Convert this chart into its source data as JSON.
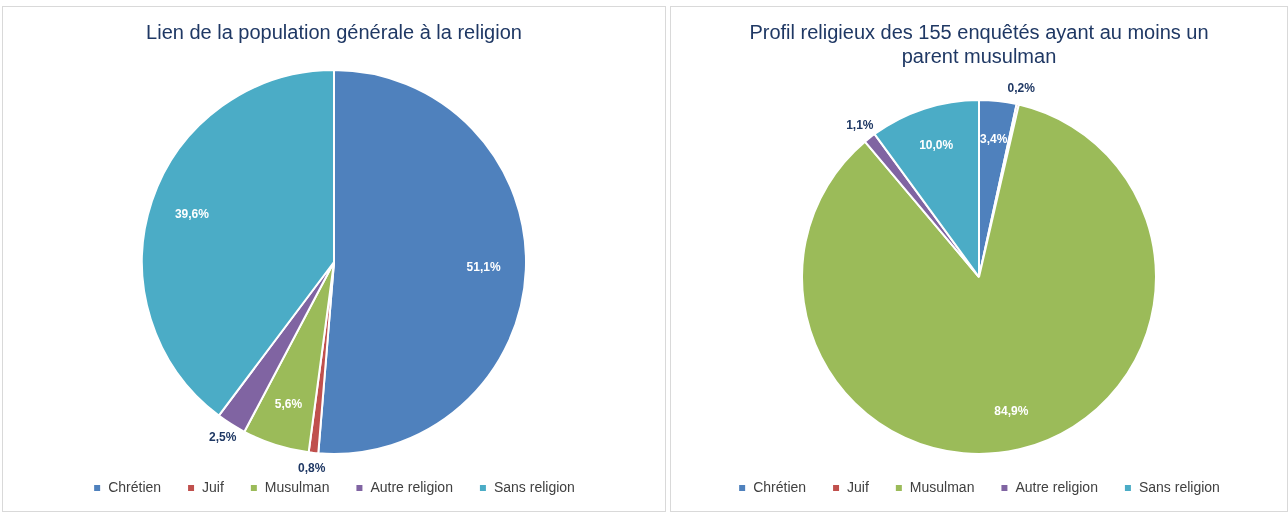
{
  "chart_data": [
    {
      "type": "pie",
      "title": "Lien de la population générale à la religion",
      "categories": [
        "Chrétien",
        "Juif",
        "Musulman",
        "Autre religion",
        "Sans religion"
      ],
      "values": [
        51.1,
        0.8,
        5.6,
        2.5,
        39.6
      ],
      "colors": [
        "#4f81bd",
        "#c0504d",
        "#9bbb59",
        "#8064a2",
        "#4bacc6"
      ],
      "value_labels": [
        "51,1%",
        "0,8%",
        "5,6%",
        "2,5%",
        "39,6%"
      ],
      "legend": "bottom"
    },
    {
      "type": "pie",
      "title": "Profil religieux des 155 enquêtés ayant au moins un parent musulman",
      "categories": [
        "Chrétien",
        "Juif",
        "Musulman",
        "Autre religion",
        "Sans religion"
      ],
      "values": [
        3.4,
        0.2,
        84.9,
        1.1,
        10.0
      ],
      "colors": [
        "#4f81bd",
        "#c0504d",
        "#9bbb59",
        "#8064a2",
        "#4bacc6"
      ],
      "value_labels": [
        "3,4%",
        "0,2%",
        "84,9%",
        "1,1%",
        "10,0%"
      ],
      "legend": "bottom"
    }
  ]
}
